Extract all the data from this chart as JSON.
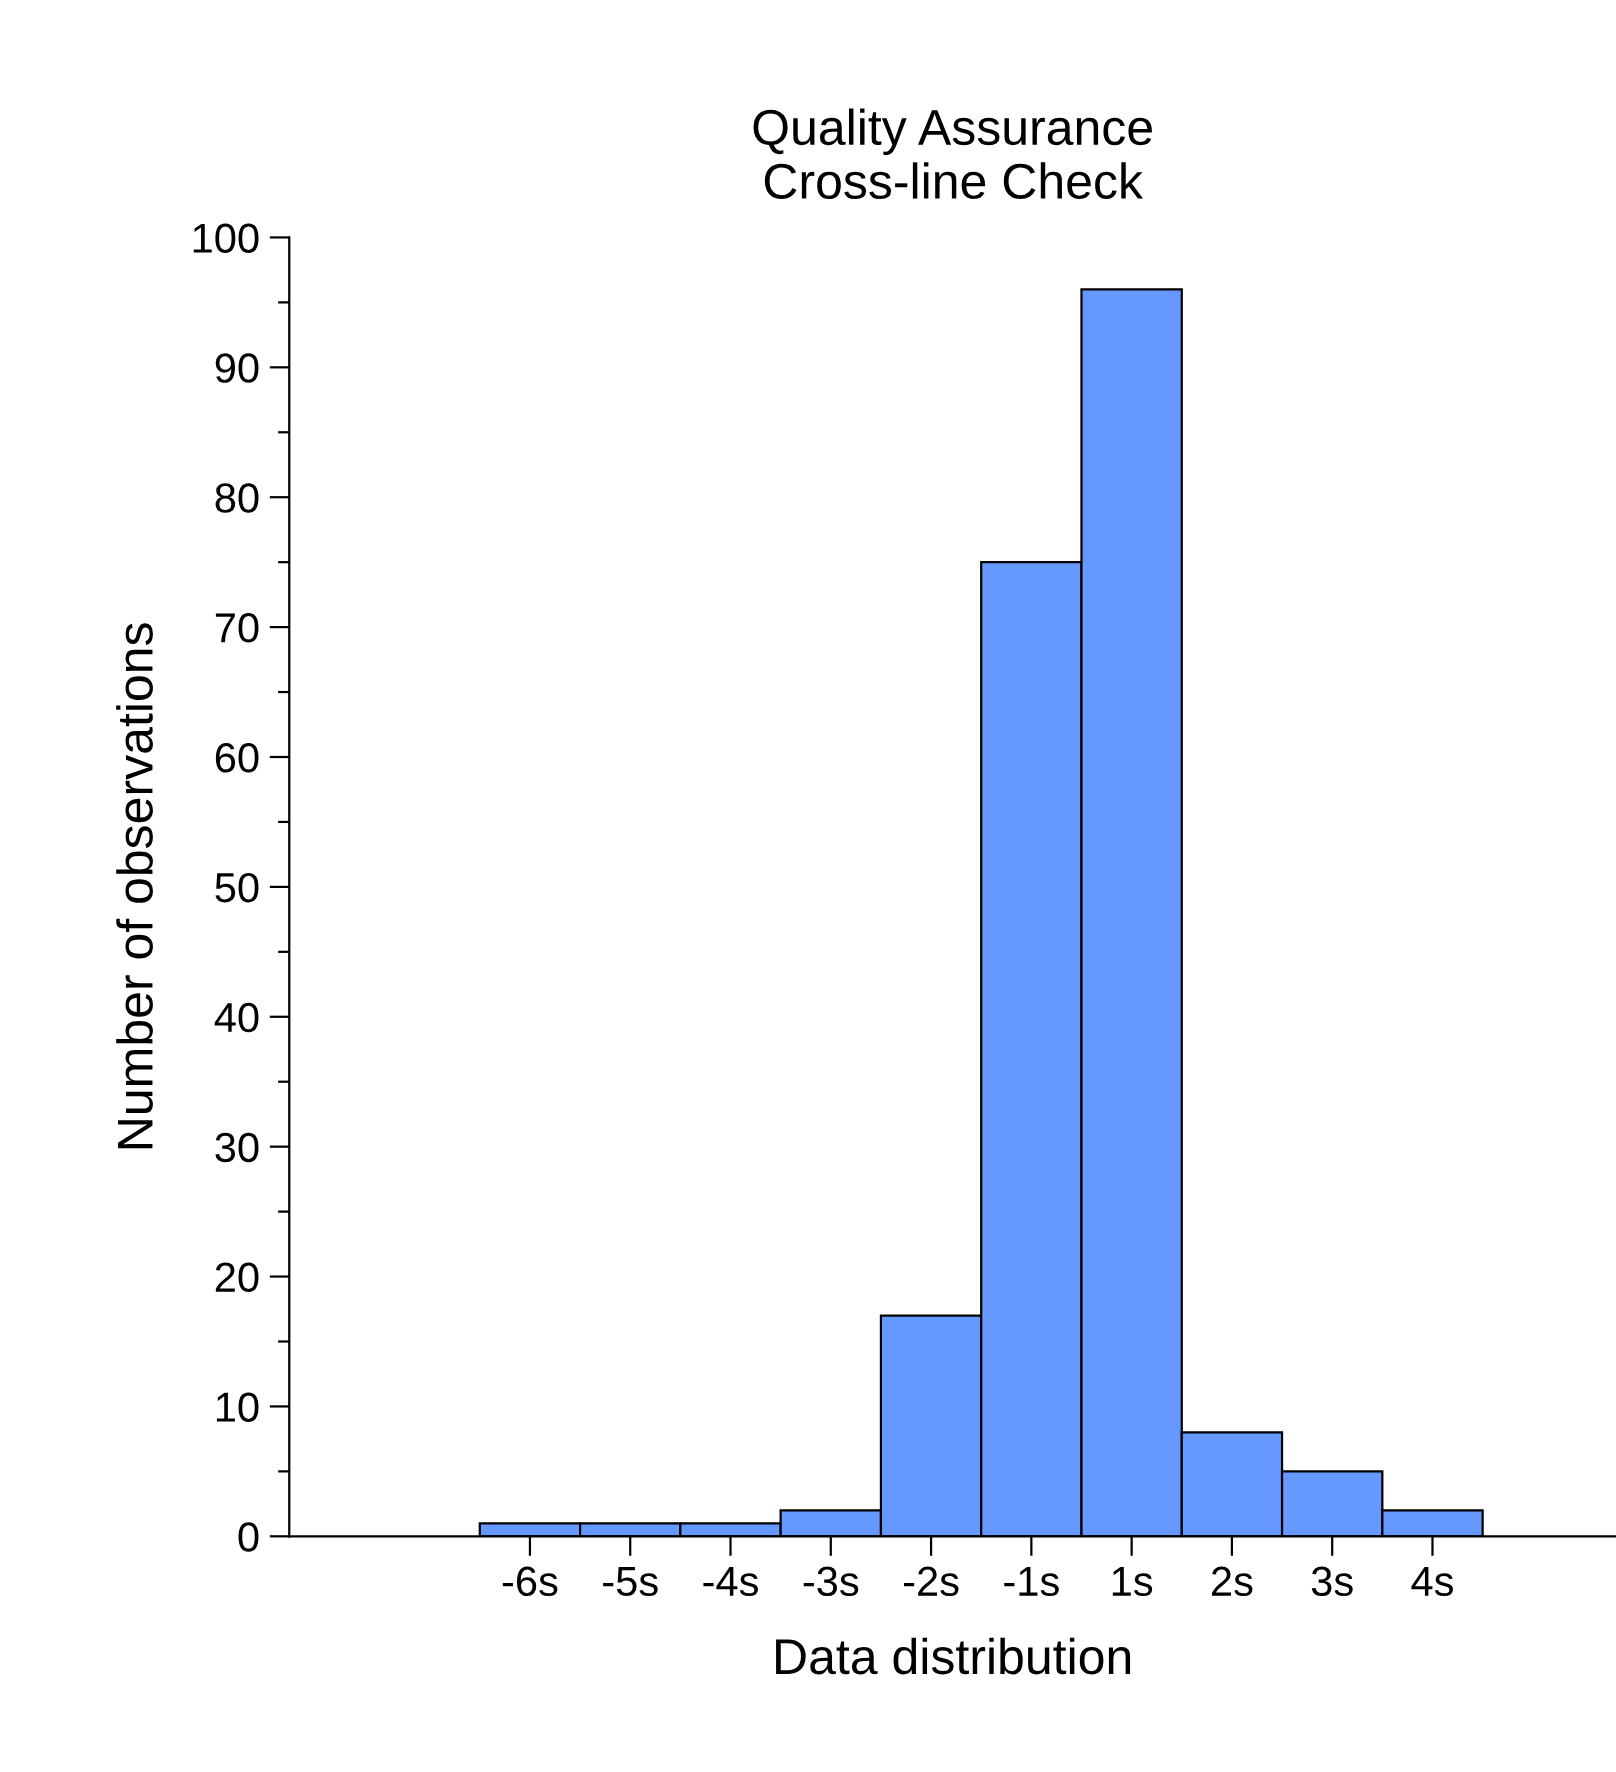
{
  "chart_data": {
    "type": "bar",
    "title": "Quality Assurance\nCross-line Check",
    "xlabel": "Data distribution",
    "ylabel": "Number of observations",
    "categories": [
      "-6s",
      "-5s",
      "-4s",
      "-3s",
      "-2s",
      "-1s",
      "1s",
      "2s",
      "3s",
      "4s"
    ],
    "values": [
      1,
      1,
      1,
      2,
      17,
      75,
      96,
      8,
      5,
      2
    ],
    "color": "#6699ff",
    "ylim": [
      0,
      100
    ],
    "yticks": [
      0,
      10,
      20,
      30,
      40,
      50,
      60,
      70,
      80,
      90,
      100
    ],
    "grid": false,
    "legend": false
  }
}
